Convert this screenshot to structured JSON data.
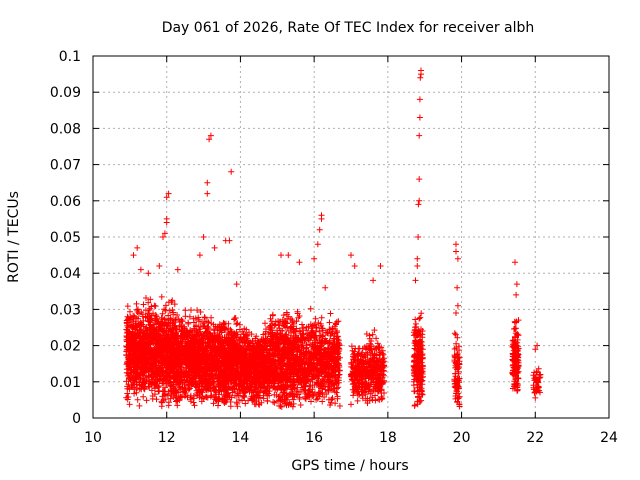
{
  "chart_data": {
    "type": "scatter",
    "title": "Day 061 of 2026, Rate Of TEC Index for receiver albh",
    "xlabel": "GPS time / hours",
    "ylabel": "ROTI / TECUs",
    "xlim": [
      10,
      24
    ],
    "ylim": [
      0,
      0.1
    ],
    "xticks": [
      "10",
      "12",
      "14",
      "16",
      "18",
      "20",
      "22",
      "24"
    ],
    "yticks": [
      "0",
      "0.01",
      "0.02",
      "0.03",
      "0.04",
      "0.05",
      "0.06",
      "0.07",
      "0.08",
      "0.09",
      "0.1"
    ],
    "grid": true,
    "marker": "+",
    "color": "#ff0000",
    "series": [
      {
        "clusters": [
          {
            "x_range": [
              10.9,
              11.9
            ],
            "y_center": 0.018,
            "y_spread": 0.012,
            "count": 900,
            "seed": 1
          },
          {
            "x_range": [
              11.9,
              12.6
            ],
            "y_center": 0.017,
            "y_spread": 0.012,
            "count": 650,
            "seed": 2
          },
          {
            "x_range": [
              12.6,
              13.3
            ],
            "y_center": 0.016,
            "y_spread": 0.011,
            "count": 650,
            "seed": 3
          },
          {
            "x_range": [
              13.3,
              14.0
            ],
            "y_center": 0.015,
            "y_spread": 0.011,
            "count": 600,
            "seed": 4
          },
          {
            "x_range": [
              14.0,
              14.8
            ],
            "y_center": 0.014,
            "y_spread": 0.01,
            "count": 650,
            "seed": 5
          },
          {
            "x_range": [
              14.8,
              15.6
            ],
            "y_center": 0.016,
            "y_spread": 0.012,
            "count": 650,
            "seed": 6
          },
          {
            "x_range": [
              15.6,
              16.7
            ],
            "y_center": 0.016,
            "y_spread": 0.011,
            "count": 700,
            "seed": 7
          },
          {
            "x_range": [
              17.0,
              17.4
            ],
            "y_center": 0.012,
            "y_spread": 0.007,
            "count": 200,
            "seed": 8
          },
          {
            "x_range": [
              17.4,
              17.9
            ],
            "y_center": 0.013,
            "y_spread": 0.009,
            "count": 250,
            "seed": 9
          },
          {
            "x_range": [
              18.7,
              18.95
            ],
            "y_center": 0.015,
            "y_spread": 0.011,
            "count": 220,
            "seed": 10
          },
          {
            "x_range": [
              19.8,
              19.95
            ],
            "y_center": 0.012,
            "y_spread": 0.01,
            "count": 90,
            "seed": 11
          },
          {
            "x_range": [
              21.38,
              21.55
            ],
            "y_center": 0.016,
            "y_spread": 0.01,
            "count": 130,
            "seed": 12
          },
          {
            "x_range": [
              21.95,
              22.15
            ],
            "y_center": 0.01,
            "y_spread": 0.004,
            "count": 40,
            "seed": 13
          }
        ],
        "points": [
          [
            11.1,
            0.045
          ],
          [
            11.2,
            0.047
          ],
          [
            11.3,
            0.041
          ],
          [
            11.5,
            0.04
          ],
          [
            11.8,
            0.042
          ],
          [
            11.9,
            0.05
          ],
          [
            11.95,
            0.051
          ],
          [
            12.0,
            0.054
          ],
          [
            12.0,
            0.055
          ],
          [
            12.0,
            0.061
          ],
          [
            12.05,
            0.062
          ],
          [
            12.3,
            0.041
          ],
          [
            12.9,
            0.045
          ],
          [
            13.0,
            0.05
          ],
          [
            13.1,
            0.062
          ],
          [
            13.1,
            0.065
          ],
          [
            13.15,
            0.077
          ],
          [
            13.2,
            0.078
          ],
          [
            13.3,
            0.047
          ],
          [
            13.6,
            0.049
          ],
          [
            13.7,
            0.049
          ],
          [
            13.75,
            0.068
          ],
          [
            13.9,
            0.037
          ],
          [
            15.1,
            0.045
          ],
          [
            15.3,
            0.045
          ],
          [
            15.6,
            0.043
          ],
          [
            16.0,
            0.044
          ],
          [
            16.1,
            0.048
          ],
          [
            16.15,
            0.052
          ],
          [
            16.2,
            0.055
          ],
          [
            16.2,
            0.056
          ],
          [
            16.3,
            0.036
          ],
          [
            17.0,
            0.045
          ],
          [
            17.1,
            0.042
          ],
          [
            17.6,
            0.038
          ],
          [
            17.8,
            0.042
          ],
          [
            18.75,
            0.038
          ],
          [
            18.8,
            0.042
          ],
          [
            18.8,
            0.044
          ],
          [
            18.82,
            0.05
          ],
          [
            18.83,
            0.059
          ],
          [
            18.85,
            0.06
          ],
          [
            18.85,
            0.066
          ],
          [
            18.85,
            0.078
          ],
          [
            18.87,
            0.083
          ],
          [
            18.87,
            0.088
          ],
          [
            18.88,
            0.094
          ],
          [
            18.9,
            0.096
          ],
          [
            18.9,
            0.095
          ],
          [
            19.85,
            0.048
          ],
          [
            19.85,
            0.046
          ],
          [
            19.9,
            0.044
          ],
          [
            19.88,
            0.036
          ],
          [
            21.45,
            0.043
          ],
          [
            21.5,
            0.037
          ],
          [
            21.48,
            0.034
          ],
          [
            22.05,
            0.02
          ],
          [
            22.0,
            0.019
          ],
          [
            19.85,
            0.029
          ],
          [
            19.9,
            0.031
          ]
        ]
      }
    ]
  }
}
